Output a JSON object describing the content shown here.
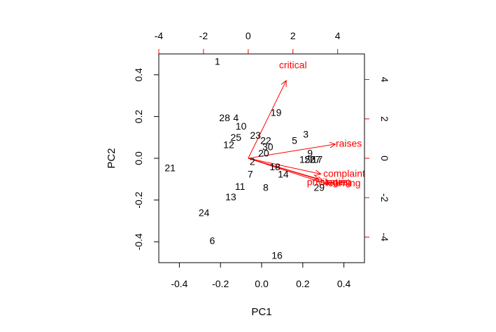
{
  "chart_data": {
    "type": "scatter",
    "subtype": "biplot",
    "title": "",
    "xlabel": "PC1",
    "ylabel": "PC2",
    "xlim": [
      -0.5,
      0.5
    ],
    "ylim": [
      -0.5,
      0.5
    ],
    "x_ticks": [
      "-0.4",
      "-0.2",
      "0.0",
      "0.2",
      "0.4"
    ],
    "y_ticks": [
      "-0.4",
      "-0.2",
      "0.0",
      "0.2",
      "0.4"
    ],
    "secondary_xlim": [
      -4.0,
      5.2
    ],
    "secondary_ylim": [
      -5.3,
      5.3
    ],
    "secondary_x_ticks": [
      "-4",
      "-2",
      "0",
      "2",
      "4"
    ],
    "secondary_y_ticks": [
      "-4",
      "-2",
      "0",
      "2",
      "4"
    ],
    "arrow_color": "#ff0000",
    "points": [
      {
        "label": "1",
        "x": -0.215,
        "y": 0.465
      },
      {
        "label": "2",
        "x": -0.045,
        "y": -0.015
      },
      {
        "label": "3",
        "x": 0.215,
        "y": 0.115
      },
      {
        "label": "4",
        "x": -0.125,
        "y": 0.195
      },
      {
        "label": "5",
        "x": 0.16,
        "y": 0.085
      },
      {
        "label": "6",
        "x": -0.24,
        "y": -0.395
      },
      {
        "label": "7",
        "x": -0.055,
        "y": -0.075
      },
      {
        "label": "8",
        "x": 0.02,
        "y": -0.14
      },
      {
        "label": "9",
        "x": 0.235,
        "y": 0.025
      },
      {
        "label": "10",
        "x": -0.1,
        "y": 0.155
      },
      {
        "label": "11",
        "x": -0.105,
        "y": -0.135
      },
      {
        "label": "12",
        "x": -0.16,
        "y": 0.065
      },
      {
        "label": "13",
        "x": -0.15,
        "y": -0.185
      },
      {
        "label": "14",
        "x": 0.105,
        "y": -0.075
      },
      {
        "label": "15",
        "x": 0.21,
        "y": -0.005
      },
      {
        "label": "16",
        "x": 0.075,
        "y": -0.465
      },
      {
        "label": "17",
        "x": 0.27,
        "y": -0.005
      },
      {
        "label": "18",
        "x": 0.065,
        "y": -0.04
      },
      {
        "label": "19",
        "x": 0.07,
        "y": 0.22
      },
      {
        "label": "20",
        "x": 0.01,
        "y": 0.025
      },
      {
        "label": "21",
        "x": -0.445,
        "y": -0.045
      },
      {
        "label": "22",
        "x": 0.02,
        "y": 0.085
      },
      {
        "label": "23",
        "x": -0.03,
        "y": 0.11
      },
      {
        "label": "24",
        "x": -0.28,
        "y": -0.26
      },
      {
        "label": "25",
        "x": -0.125,
        "y": 0.1
      },
      {
        "label": "26",
        "x": 0.235,
        "y": -0.005
      },
      {
        "label": "27",
        "x": 0.26,
        "y": -0.005
      },
      {
        "label": "28",
        "x": -0.18,
        "y": 0.195
      },
      {
        "label": "29",
        "x": 0.28,
        "y": -0.14
      },
      {
        "label": "30",
        "x": 0.03,
        "y": 0.055
      }
    ],
    "variables": [
      {
        "label": "critical",
        "x": 1.7,
        "y": 3.95
      },
      {
        "label": "raises",
        "x": 3.9,
        "y": 0.72
      },
      {
        "label": "complaints",
        "x": 3.25,
        "y": -0.8
      },
      {
        "label": "learning",
        "x": 3.5,
        "y": -1.3
      },
      {
        "label": "privileges",
        "x": 3.15,
        "y": -1.05
      },
      {
        "label": "rating",
        "x": 3.35,
        "y": -1.15
      }
    ],
    "variable_labels": [
      {
        "label": "critical",
        "x": 2.0,
        "y": 4.75
      },
      {
        "label": "raises",
        "x": 4.5,
        "y": 0.77
      },
      {
        "label": "complaints",
        "x": 4.4,
        "y": -0.77
      },
      {
        "label": "learning",
        "x": 4.25,
        "y": -1.25
      },
      {
        "label": "privileges",
        "x": 3.55,
        "y": -1.2
      },
      {
        "label": "rating",
        "x": 4.05,
        "y": -1.2
      }
    ]
  }
}
